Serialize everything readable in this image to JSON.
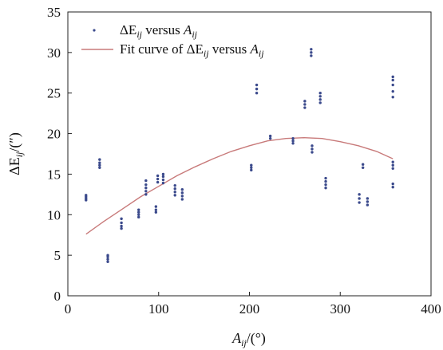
{
  "chart_data": {
    "type": "scatter",
    "xlim": [
      0,
      400
    ],
    "ylim": [
      0,
      35
    ],
    "x_ticks": [
      0,
      100,
      200,
      300,
      400
    ],
    "y_ticks": [
      0,
      5,
      10,
      15,
      20,
      25,
      30,
      35
    ],
    "xlabel": {
      "base": "A",
      "sub": "ij",
      "tail": "/(°)"
    },
    "ylabel": {
      "base": "ΔE",
      "sub": "ij",
      "tail": "/(″)"
    },
    "legend_position": "top-left",
    "grid": false,
    "series": [
      {
        "kind": "scatter",
        "color": "#3b4a8c",
        "legend": {
          "base": "ΔE",
          "sub1": "ij",
          "mid": " versus ",
          "base2": "A",
          "sub2": "ij"
        },
        "points": [
          [
            20,
            11.8
          ],
          [
            20,
            12.0
          ],
          [
            20,
            12.2
          ],
          [
            20,
            12.4
          ],
          [
            35,
            15.8
          ],
          [
            35,
            16.1
          ],
          [
            35,
            16.4
          ],
          [
            35,
            16.8
          ],
          [
            44,
            4.2
          ],
          [
            44,
            4.5
          ],
          [
            44,
            4.8
          ],
          [
            44,
            5.0
          ],
          [
            59,
            8.3
          ],
          [
            59,
            8.6
          ],
          [
            59,
            9.0
          ],
          [
            59,
            9.5
          ],
          [
            78,
            9.7
          ],
          [
            78,
            10.0
          ],
          [
            78,
            10.3
          ],
          [
            78,
            10.6
          ],
          [
            86,
            12.5
          ],
          [
            86,
            12.9
          ],
          [
            86,
            13.3
          ],
          [
            86,
            13.7
          ],
          [
            86,
            14.2
          ],
          [
            97,
            10.3
          ],
          [
            97,
            10.6
          ],
          [
            97,
            11.0
          ],
          [
            99,
            14.0
          ],
          [
            99,
            14.4
          ],
          [
            99,
            14.8
          ],
          [
            105,
            13.9
          ],
          [
            105,
            14.3
          ],
          [
            105,
            14.7
          ],
          [
            105,
            15.0
          ],
          [
            118,
            12.4
          ],
          [
            118,
            12.8
          ],
          [
            118,
            13.2
          ],
          [
            118,
            13.6
          ],
          [
            126,
            11.9
          ],
          [
            126,
            12.3
          ],
          [
            126,
            12.7
          ],
          [
            126,
            13.1
          ],
          [
            202,
            15.5
          ],
          [
            202,
            15.8
          ],
          [
            202,
            16.1
          ],
          [
            208,
            25.0
          ],
          [
            208,
            25.5
          ],
          [
            208,
            26.0
          ],
          [
            223,
            19.4
          ],
          [
            223,
            19.7
          ],
          [
            248,
            18.8
          ],
          [
            248,
            19.1
          ],
          [
            248,
            19.4
          ],
          [
            261,
            23.2
          ],
          [
            261,
            23.6
          ],
          [
            261,
            24.0
          ],
          [
            268,
            29.6
          ],
          [
            268,
            30.0
          ],
          [
            268,
            30.4
          ],
          [
            269,
            17.7
          ],
          [
            269,
            18.1
          ],
          [
            269,
            18.5
          ],
          [
            278,
            23.8
          ],
          [
            278,
            24.2
          ],
          [
            278,
            24.6
          ],
          [
            278,
            25.0
          ],
          [
            284,
            13.3
          ],
          [
            284,
            13.7
          ],
          [
            284,
            14.1
          ],
          [
            284,
            14.5
          ],
          [
            321,
            11.5
          ],
          [
            321,
            12.0
          ],
          [
            321,
            12.5
          ],
          [
            325,
            15.8
          ],
          [
            325,
            16.2
          ],
          [
            330,
            11.2
          ],
          [
            330,
            11.6
          ],
          [
            330,
            12.0
          ],
          [
            358,
            24.5
          ],
          [
            358,
            25.2
          ],
          [
            358,
            26.0
          ],
          [
            358,
            26.6
          ],
          [
            358,
            27.0
          ],
          [
            358,
            15.7
          ],
          [
            358,
            16.1
          ],
          [
            358,
            16.5
          ],
          [
            358,
            13.4
          ],
          [
            358,
            13.8
          ]
        ]
      },
      {
        "kind": "line",
        "color": "#c87a7a",
        "legend": {
          "pre": "Fit curve of ",
          "base": "ΔE",
          "sub1": "ij",
          "mid": " versus ",
          "base2": "A",
          "sub2": "ij"
        },
        "points": [
          [
            20,
            7.6
          ],
          [
            40,
            9.2
          ],
          [
            60,
            10.7
          ],
          [
            80,
            12.2
          ],
          [
            100,
            13.5
          ],
          [
            120,
            14.8
          ],
          [
            140,
            15.9
          ],
          [
            160,
            16.9
          ],
          [
            180,
            17.8
          ],
          [
            200,
            18.5
          ],
          [
            220,
            19.1
          ],
          [
            240,
            19.4
          ],
          [
            260,
            19.5
          ],
          [
            280,
            19.4
          ],
          [
            300,
            19.0
          ],
          [
            320,
            18.5
          ],
          [
            340,
            17.8
          ],
          [
            358,
            16.9
          ]
        ]
      }
    ]
  }
}
